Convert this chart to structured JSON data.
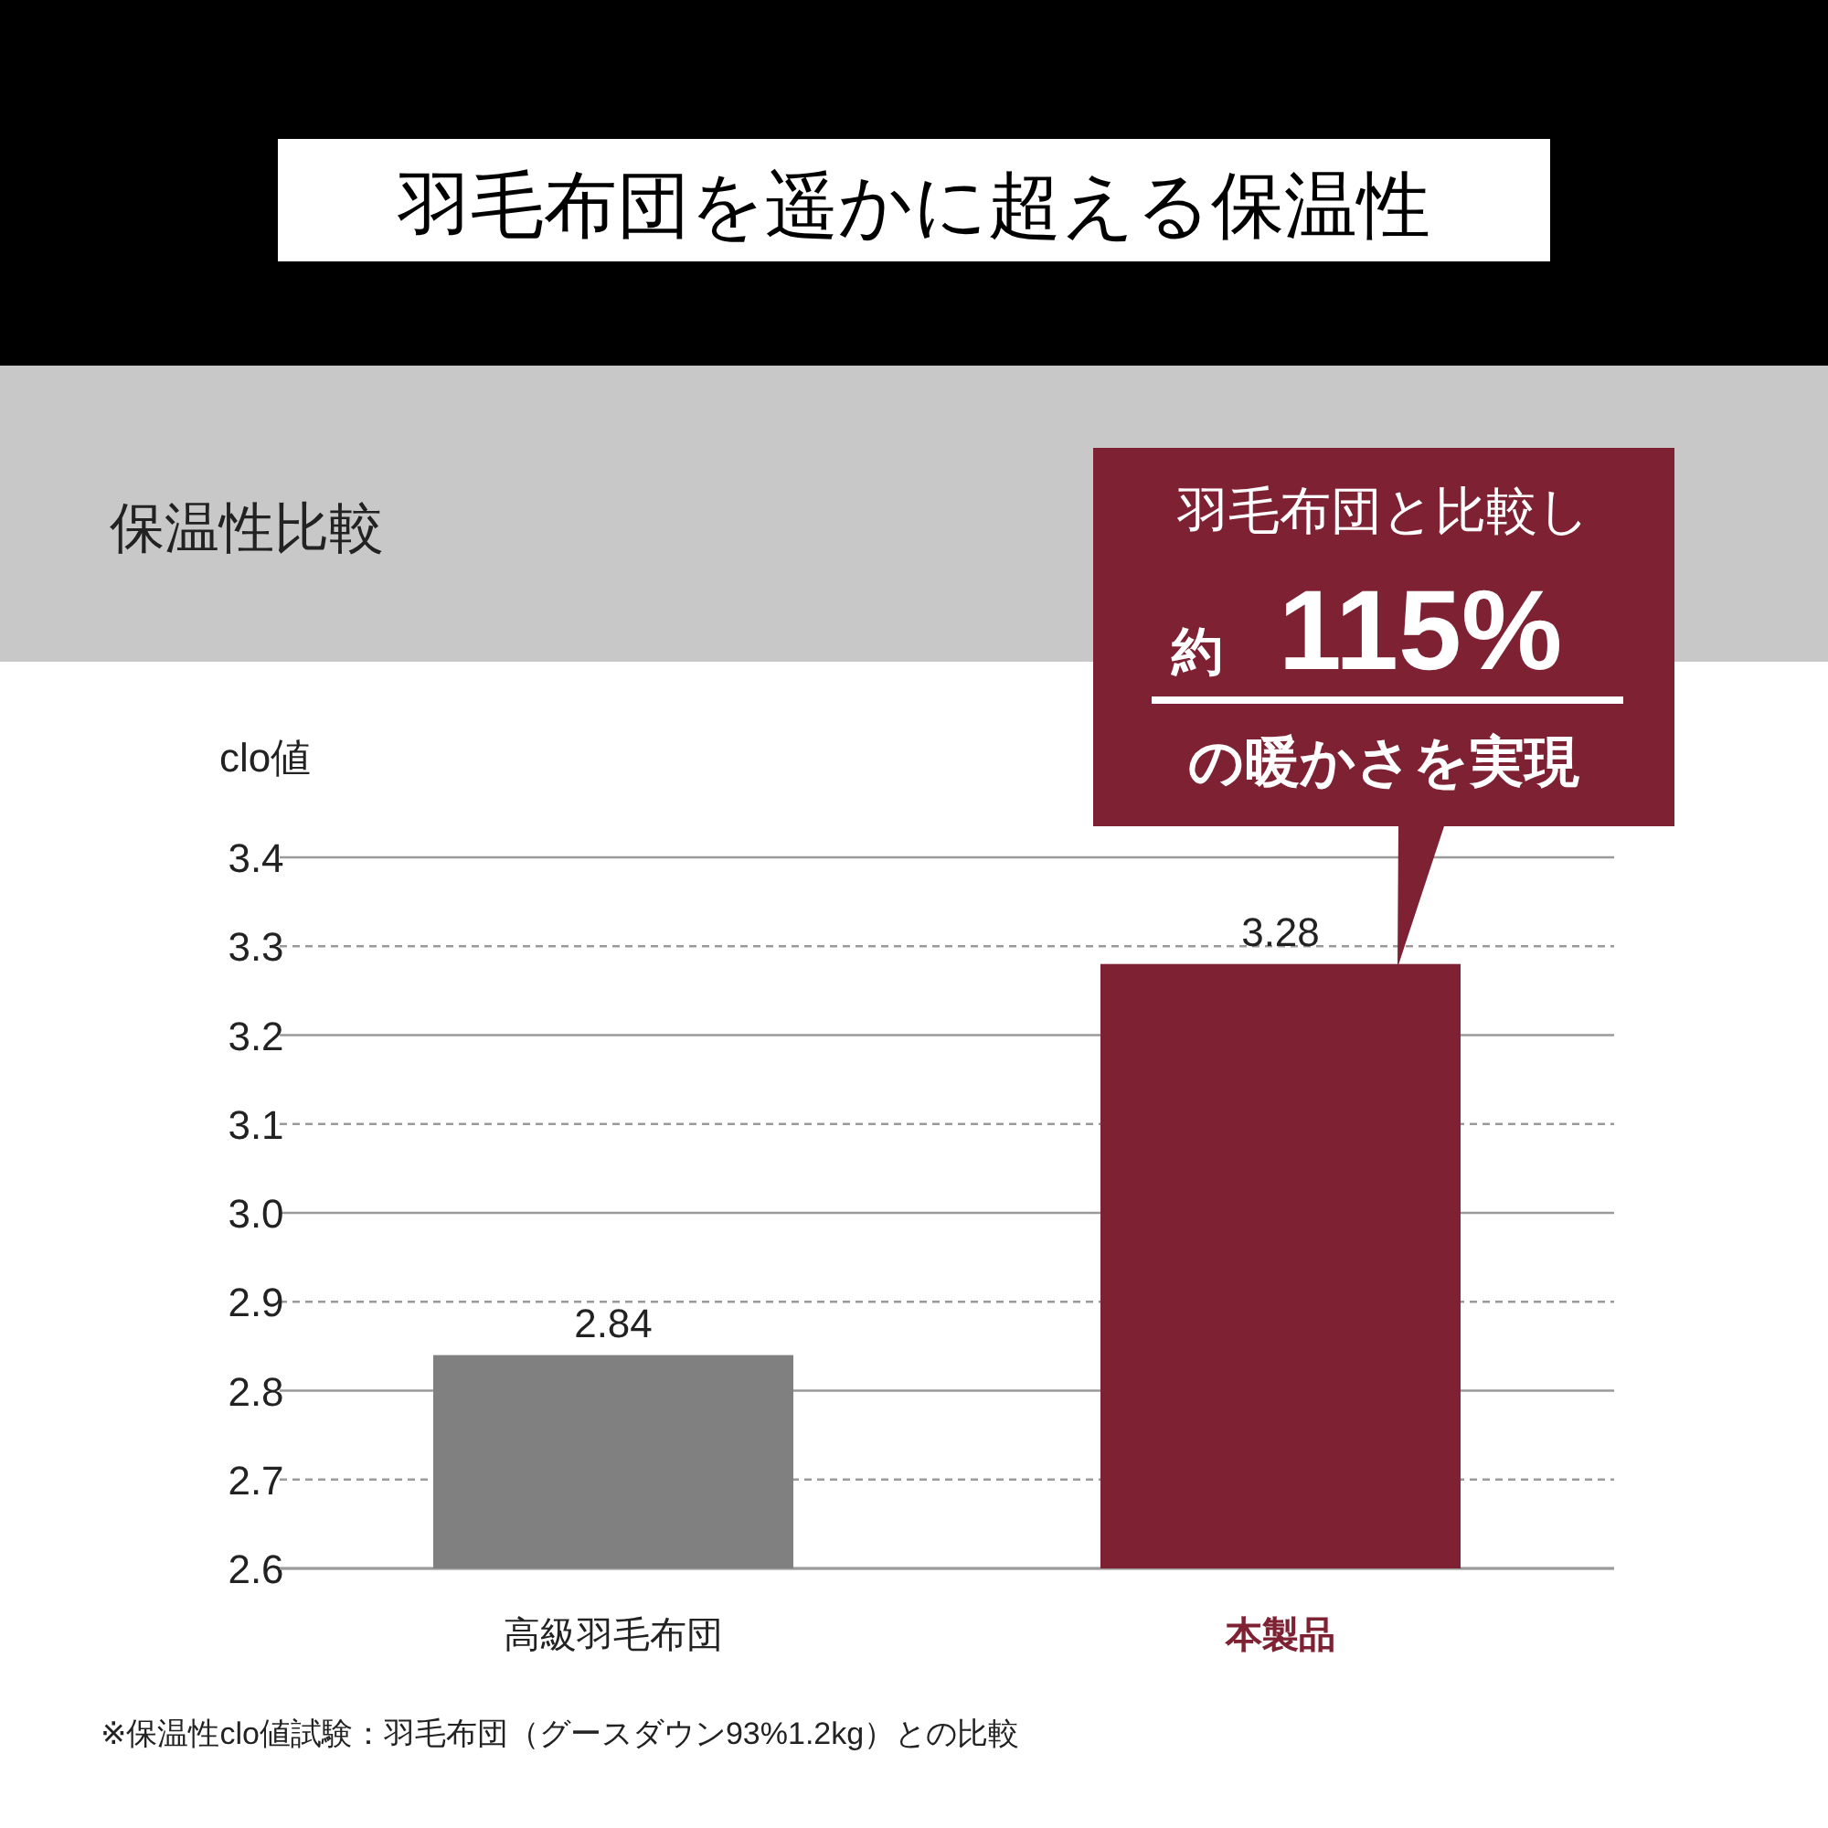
{
  "chart_data": {
    "type": "bar",
    "title": "羽毛布団を遥かに超える保温性",
    "subtitle": "保温性比較",
    "ylabel": "clo値",
    "categories": [
      "高級羽毛布団",
      "本製品"
    ],
    "values": [
      2.84,
      3.28
    ],
    "colors": [
      "#808080",
      "#7e2233"
    ],
    "ylim": [
      2.6,
      3.4
    ],
    "yticks": [
      2.6,
      2.7,
      2.8,
      2.9,
      {
        "value": 3,
        "label": "3.0"
      },
      3.1,
      3.2,
      3.3,
      3.4
    ],
    "grid": true,
    "data_labels": true,
    "annotations": [
      "羽毛布団と比較し",
      "約",
      "115%",
      "の暖かさを実現",
      "※保温性clo値試験：羽毛布団（グースダウン93%1.2kg）との比較"
    ]
  }
}
